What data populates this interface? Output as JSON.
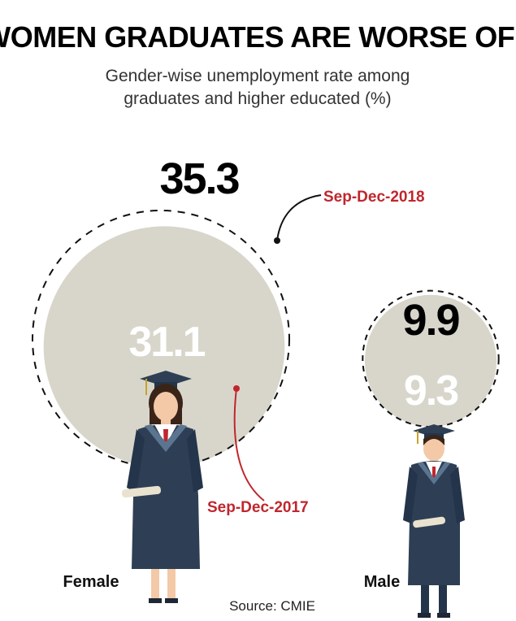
{
  "chart_data": {
    "type": "bubble",
    "title": "WOMEN GRADUATES ARE WORSE OFF",
    "subtitle": [
      "Gender-wise unemployment rate among",
      "graduates and higher educated (%)"
    ],
    "categories": [
      "Female",
      "Male"
    ],
    "series": [
      {
        "name": "Sep-Dec-2017",
        "values": [
          31.1,
          9.3
        ]
      },
      {
        "name": "Sep-Dec-2018",
        "values": [
          35.3,
          9.9
        ]
      }
    ],
    "source": "Source: CMIE"
  },
  "colors": {
    "fill_2017": "#d8d6cb",
    "outline_2018": "#111111",
    "annotation": "#c0262d",
    "gown": "#2e3f55",
    "skin": "#f3c9a8"
  },
  "icons": [
    "female-graduate-icon",
    "male-graduate-icon"
  ]
}
